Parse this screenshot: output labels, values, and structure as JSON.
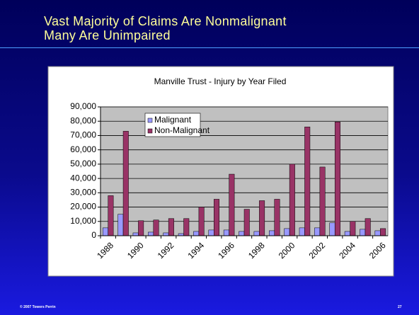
{
  "slide": {
    "title": [
      "Vast Majority of Claims Are Nonmalignant",
      "Many Are Unimpaired"
    ],
    "footer": "© 2007 Towers Perrin",
    "page": "27"
  },
  "chart_data": {
    "type": "bar",
    "title": "Manville Trust - Injury by Year Filed",
    "categories": [
      "1988",
      null,
      "1990",
      null,
      "1992",
      null,
      "1994",
      null,
      "1996",
      null,
      "1998",
      null,
      "2000",
      null,
      "2002",
      null,
      "2004",
      null,
      "2006"
    ],
    "series": [
      {
        "name": "Malignant",
        "color": "#9999ff",
        "values": [
          5500,
          15000,
          2000,
          2500,
          2000,
          1500,
          3000,
          4000,
          4000,
          3000,
          3000,
          3500,
          5000,
          5500,
          5500,
          9000,
          3000,
          4500,
          3500
        ]
      },
      {
        "name": "Non-Malignant",
        "color": "#993366",
        "values": [
          28000,
          73000,
          10500,
          11000,
          12000,
          12000,
          20000,
          25500,
          43000,
          18500,
          24500,
          25500,
          50000,
          76000,
          48000,
          79500,
          10000,
          12000,
          5000
        ]
      }
    ],
    "ylim": [
      0,
      90000
    ],
    "yticks": [
      0,
      {
        "value": 10000,
        "label": "10,000"
      },
      {
        "value": 20000,
        "label": "20,000"
      },
      {
        "value": 30000,
        "label": "30,000"
      },
      {
        "value": 40000,
        "label": "40,000"
      },
      {
        "value": 50000,
        "label": "50,000"
      },
      {
        "value": 60000,
        "label": "60,000"
      },
      {
        "value": 70000,
        "label": "70,000"
      },
      {
        "value": 80000,
        "label": "80,000"
      },
      {
        "value": 90000,
        "label": "90,000"
      }
    ],
    "grid": true,
    "legend": "upper left"
  }
}
